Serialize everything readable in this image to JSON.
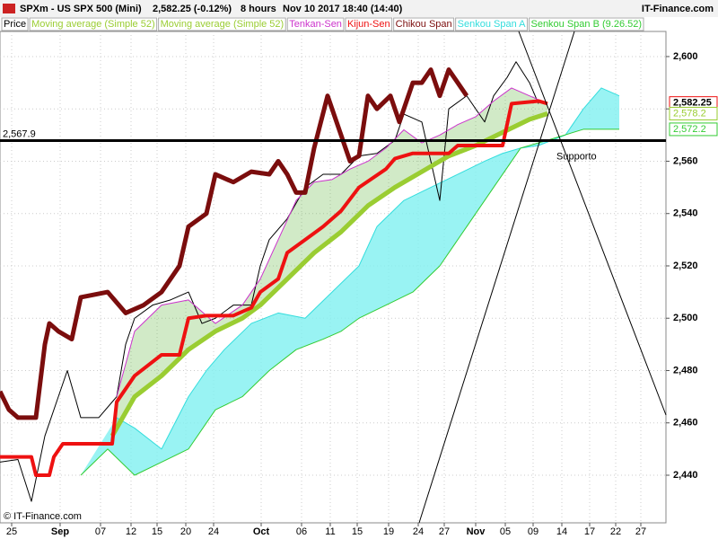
{
  "header": {
    "symbol": "SPXm - US SPX 500 (Mini)",
    "quote": "2,582.25 (-0.12%)",
    "period": "8 hours",
    "datetime": "Nov 10 2017 18:40 (14:40)",
    "brand": "IT-Finance.com"
  },
  "chart_data": {
    "type": "line",
    "xlim": [
      0,
      74.2
    ],
    "ylim": [
      2421.8,
      2609.6
    ],
    "xticks": [
      {
        "value": 1.3,
        "label": "25"
      },
      {
        "value": 6.7,
        "label": "Sep"
      },
      {
        "value": 11.2,
        "label": "07"
      },
      {
        "value": 14.6,
        "label": "12"
      },
      {
        "value": 17.5,
        "label": "15"
      },
      {
        "value": 20.7,
        "label": "20"
      },
      {
        "value": 23.8,
        "label": "24"
      },
      {
        "value": 29.1,
        "label": "Oct"
      },
      {
        "value": 33.6,
        "label": "06"
      },
      {
        "value": 36.8,
        "label": "11"
      },
      {
        "value": 39.8,
        "label": "15"
      },
      {
        "value": 43.3,
        "label": "19"
      },
      {
        "value": 46.6,
        "label": "24"
      },
      {
        "value": 49.5,
        "label": "27"
      },
      {
        "value": 53.0,
        "label": "Nov"
      },
      {
        "value": 56.3,
        "label": "05"
      },
      {
        "value": 59.4,
        "label": "09"
      },
      {
        "value": 62.6,
        "label": "14"
      },
      {
        "value": 65.7,
        "label": "17"
      },
      {
        "value": 68.6,
        "label": "22"
      },
      {
        "value": 71.4,
        "label": "27"
      }
    ],
    "yticks": [
      {
        "value": 2440,
        "label": "2,440"
      },
      {
        "value": 2460,
        "label": "2,460"
      },
      {
        "value": 2480,
        "label": "2,480"
      },
      {
        "value": 2500,
        "label": "2,500"
      },
      {
        "value": 2520,
        "label": "2,520"
      },
      {
        "value": 2540,
        "label": "2,540"
      },
      {
        "value": 2560,
        "label": "2,560"
      },
      {
        "value": 2580,
        "label": "2,580"
      },
      {
        "value": 2600,
        "label": "2,600"
      }
    ],
    "grid": true,
    "series": [
      {
        "name": "Price",
        "color": "#000000",
        "width": 1,
        "x": [
          0,
          2,
          3.5,
          5,
          6.5,
          7.5,
          9,
          11,
          13,
          14,
          15,
          17,
          19,
          21,
          22.5,
          24,
          26,
          28,
          29,
          30,
          32,
          34,
          36,
          38,
          40,
          42,
          44,
          45,
          47,
          48,
          49,
          50,
          52,
          54,
          55,
          56.5,
          57.5,
          59,
          60
        ],
        "values": [
          2445,
          2446,
          2430,
          2455,
          2470,
          2480,
          2462,
          2462,
          2470,
          2490,
          2500,
          2505,
          2507,
          2510,
          2498,
          2500,
          2505,
          2505,
          2520,
          2530,
          2538,
          2550,
          2555,
          2555,
          2562,
          2563,
          2568,
          2578,
          2575,
          2560,
          2545,
          2580,
          2585,
          2575,
          2585,
          2592,
          2598,
          2590,
          2582
        ]
      },
      {
        "name": "Moving average (Simple 52)",
        "color": "#9acd32",
        "width": 5,
        "x": [
          12.5,
          15,
          18,
          21,
          24,
          27,
          29,
          32,
          35,
          38,
          41,
          44,
          47,
          50,
          53,
          56,
          59,
          61
        ],
        "values": [
          2455,
          2470,
          2478,
          2488,
          2495,
          2500,
          2505,
          2515,
          2525,
          2533,
          2543,
          2550,
          2556,
          2562,
          2566,
          2571,
          2576,
          2578.2
        ]
      },
      {
        "name": "Moving average (Simple 52)",
        "color": "#9acd32",
        "width": 5,
        "x": [
          12.5,
          15,
          18,
          21,
          24,
          27,
          29,
          32,
          35,
          38,
          41,
          44,
          47,
          50,
          53,
          56,
          59,
          61
        ],
        "values": [
          2455,
          2470,
          2478,
          2488,
          2495,
          2500,
          2505,
          2515,
          2525,
          2533,
          2543,
          2550,
          2556,
          2562,
          2566,
          2571,
          2576,
          2578.2
        ]
      },
      {
        "name": "Tenkan-Sen",
        "color": "#cc33cc",
        "width": 1,
        "x": [
          13,
          15,
          18,
          21,
          24,
          27,
          29,
          31,
          33,
          35,
          37,
          39,
          41,
          43,
          45,
          47,
          49,
          51,
          53,
          55,
          57,
          59,
          61
        ],
        "values": [
          2470,
          2495,
          2505,
          2507,
          2498,
          2505,
          2515,
          2530,
          2545,
          2552,
          2553,
          2557,
          2560,
          2565,
          2572,
          2567,
          2570,
          2574,
          2577,
          2583,
          2588,
          2585,
          2582
        ]
      },
      {
        "name": "Kijun-Sen",
        "color": "#ee1111",
        "width": 4,
        "x": [
          0,
          3.5,
          4,
          5.5,
          6,
          7,
          12.5,
          13,
          15,
          18,
          20,
          21,
          23,
          26,
          28,
          29,
          31,
          32,
          34,
          36,
          38,
          40,
          43,
          44,
          46,
          50,
          51,
          56,
          57,
          60,
          61
        ],
        "values": [
          2447,
          2447,
          2440,
          2440,
          2447,
          2452,
          2452,
          2468,
          2478,
          2486,
          2486,
          2500,
          2501,
          2501,
          2504,
          2510,
          2515,
          2525,
          2530,
          2535,
          2541,
          2550,
          2557,
          2561,
          2563,
          2563,
          2566,
          2566,
          2582,
          2583,
          2582
        ]
      },
      {
        "name": "Chikou Span",
        "color": "#7b0d0d",
        "width": 5,
        "x": [
          0,
          1,
          2,
          4,
          5,
          5.5,
          6.5,
          8,
          9,
          12,
          13,
          14,
          16,
          18,
          20,
          21,
          23,
          24,
          26,
          28,
          30,
          31,
          32,
          33,
          34,
          35,
          36.5,
          38,
          39,
          40,
          41,
          42,
          43.5,
          44.5,
          46,
          47,
          48,
          49,
          50,
          51,
          52
        ],
        "values": [
          2472,
          2465,
          2462,
          2462,
          2490,
          2498,
          2495,
          2492,
          2508,
          2510,
          2506,
          2502,
          2505,
          2510,
          2520,
          2535,
          2540,
          2555,
          2552,
          2556,
          2555,
          2560,
          2555,
          2548,
          2548,
          2565,
          2585,
          2570,
          2560,
          2562,
          2585,
          2580,
          2585,
          2575,
          2590,
          2590,
          2595,
          2585,
          2595,
          2590,
          2585
        ]
      },
      {
        "name": "Senkou Span A",
        "color": "#33dddd",
        "width": 1,
        "x": [
          13,
          15,
          18,
          21,
          23,
          25,
          28,
          31,
          34,
          37,
          40,
          42,
          45,
          48,
          51,
          54,
          56,
          58,
          60,
          63,
          65,
          67,
          69
        ],
        "values": [
          2462,
          2458,
          2450,
          2470,
          2480,
          2488,
          2498,
          2502,
          2500,
          2510,
          2520,
          2535,
          2545,
          2550,
          2555,
          2560,
          2563,
          2565,
          2566,
          2570,
          2580,
          2588,
          2585
        ]
      },
      {
        "name": "Senkou Span B (9.26.52)",
        "color": "#33cc33",
        "width": 1,
        "x": [
          9,
          12,
          15,
          18,
          21,
          24,
          27,
          30,
          33,
          36,
          38,
          40,
          43,
          46,
          49,
          52,
          55,
          58,
          61,
          65,
          69
        ],
        "values": [
          2440,
          2450,
          2440,
          2445,
          2450,
          2465,
          2470,
          2480,
          2488,
          2492,
          2495,
          2500,
          2505,
          2510,
          2520,
          2535,
          2550,
          2565,
          2568,
          2572.2,
          2572.2
        ]
      }
    ],
    "support": {
      "value": 2567.9,
      "label": "2,567.9",
      "text": "Supporto"
    },
    "trendlines": [
      {
        "x": [
          46.7,
          64.0
        ],
        "y": [
          2421.8,
          2609.6
        ]
      },
      {
        "x": [
          57.8,
          74.2
        ],
        "y": [
          2609.6,
          2463
        ]
      }
    ],
    "last_labels": [
      {
        "value": 2582.25,
        "label": "2,582.25",
        "color": "#ee1111"
      },
      {
        "value": 2578.2,
        "label": "2,578.2",
        "color": "#9acd32"
      },
      {
        "value": 2572.2,
        "label": "2,572.2",
        "color": "#33cc33"
      }
    ]
  }
}
